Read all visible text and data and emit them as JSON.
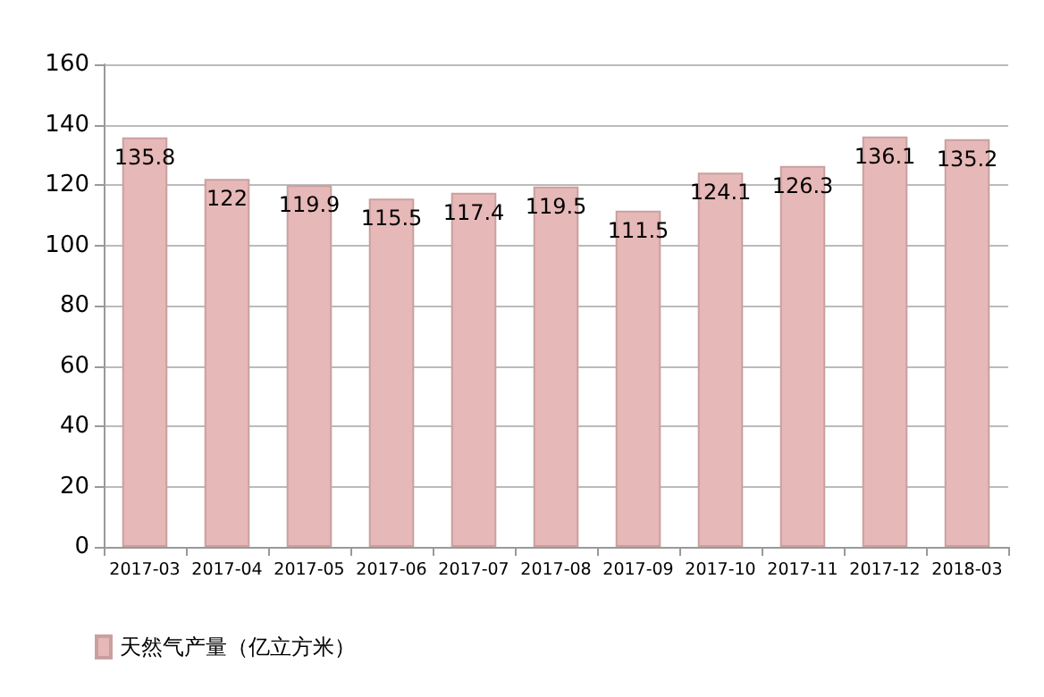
{
  "chart_data": {
    "type": "bar",
    "categories": [
      "2017-03",
      "2017-04",
      "2017-05",
      "2017-06",
      "2017-07",
      "2017-08",
      "2017-09",
      "2017-10",
      "2017-11",
      "2017-12",
      "2018-03"
    ],
    "series": [
      {
        "name": "天然气产量（亿立方米）",
        "color": "#e6b8b7",
        "values": [
          135.8,
          122,
          119.9,
          115.5,
          117.4,
          119.5,
          111.5,
          124.1,
          126.3,
          136.1,
          135.2
        ]
      }
    ],
    "ylim": [
      0,
      160
    ],
    "yticks": [
      0,
      20,
      40,
      60,
      80,
      100,
      120,
      140,
      160
    ],
    "grid": "y",
    "legend": "bottom left",
    "data_labels": true
  }
}
